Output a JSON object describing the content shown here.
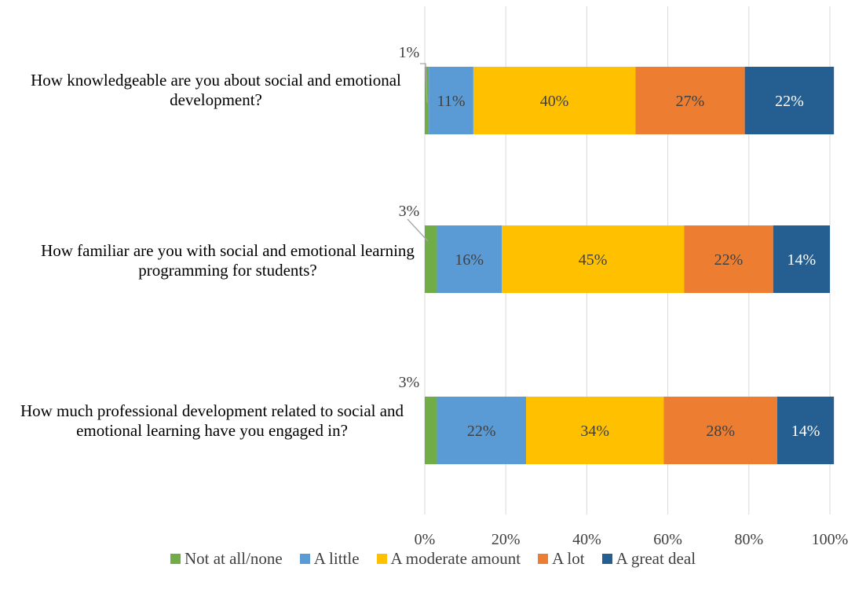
{
  "chart_data": {
    "type": "bar",
    "orientation": "horizontal",
    "stacked": "percent",
    "categories": [
      "How knowledgeable are you about social and emotional development?",
      "How familiar are you with social and emotional learning programming for students?",
      "How much professional development related to social and emotional learning have you engaged in?"
    ],
    "series": [
      {
        "name": "Not at all/none",
        "color": "#70ad47",
        "values": [
          1,
          3,
          3
        ],
        "labels": [
          "1%",
          "3%",
          "3%"
        ]
      },
      {
        "name": "A little",
        "color": "#5b9bd5",
        "values": [
          11,
          16,
          22
        ],
        "labels": [
          "11%",
          "16%",
          "22%"
        ]
      },
      {
        "name": "A moderate amount",
        "color": "#ffc000",
        "values": [
          40,
          45,
          34
        ],
        "labels": [
          "40%",
          "45%",
          "34%"
        ]
      },
      {
        "name": "A lot",
        "color": "#ed7d31",
        "values": [
          27,
          22,
          28
        ],
        "labels": [
          "27%",
          "22%",
          "28%"
        ]
      },
      {
        "name": "A great deal",
        "color": "#255e91",
        "values": [
          22,
          14,
          14
        ],
        "labels": [
          "22%",
          "14%",
          "14%"
        ]
      }
    ],
    "x_ticks": [
      "0%",
      "20%",
      "40%",
      "60%",
      "80%",
      "100%"
    ],
    "xlim": [
      0,
      100
    ],
    "grid": true,
    "legend_position": "bottom"
  }
}
